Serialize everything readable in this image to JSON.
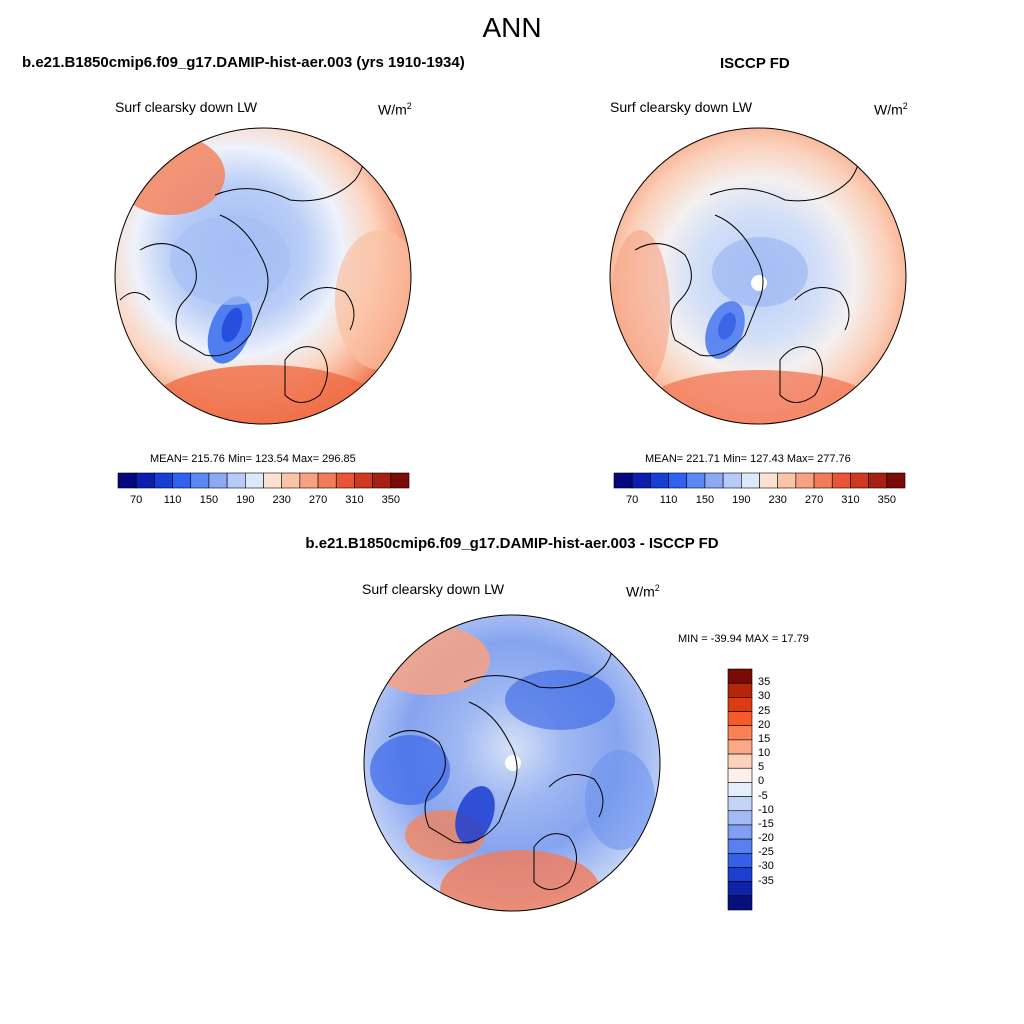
{
  "header": {
    "title": "ANN"
  },
  "variable": {
    "label": "Surf clearsky down LW",
    "units_base": "W/m",
    "units_exp": "2"
  },
  "panels": [
    {
      "id": "model",
      "title": "b.e21.B1850cmip6.f09_g17.DAMIP-hist-aer.003 (yrs 1910-1934)",
      "stats": "MEAN= 215.76  Min= 123.54  Max= 296.85",
      "mean": 215.76,
      "min": 123.54,
      "max": 296.85
    },
    {
      "id": "obs",
      "title": "ISCCP FD",
      "stats": "MEAN= 221.71  Min= 127.43  Max= 277.76",
      "mean": 221.71,
      "min": 127.43,
      "max": 277.76
    },
    {
      "id": "diff",
      "title": "b.e21.B1850cmip6.f09_g17.DAMIP-hist-aer.003 - ISCCP FD",
      "stats": "MIN = -39.94 MAX =  17.79",
      "min": -39.94,
      "max": 17.79
    }
  ],
  "colorbars": {
    "absolute": {
      "colors": [
        "#06067f",
        "#0a1eb0",
        "#1440d8",
        "#2f62f0",
        "#5c88f5",
        "#8aaaf5",
        "#b8cbf8",
        "#dde8fb",
        "#fde2d2",
        "#fbc3a8",
        "#f7a182",
        "#f27b5a",
        "#ea5533",
        "#cf3a1c",
        "#a52210",
        "#7a0a05"
      ],
      "tick_labels": [
        "70",
        "110",
        "150",
        "190",
        "230",
        "270",
        "310",
        "350"
      ]
    },
    "difference": {
      "colors": [
        "#7a0a05",
        "#b5250c",
        "#de3a14",
        "#f55a2b",
        "#f88256",
        "#fba886",
        "#fdd1bb",
        "#fdf0ea",
        "#e6eefc",
        "#c4d4f7",
        "#a2bbf4",
        "#7e9ff2",
        "#5980ef",
        "#365fe7",
        "#1c3ed1",
        "#0e23a8",
        "#05107d"
      ],
      "tick_labels": [
        "35",
        "30",
        "25",
        "20",
        "15",
        "10",
        "5",
        "0",
        "-5",
        "-10",
        "-15",
        "-20",
        "-25",
        "-30",
        "-35"
      ]
    }
  }
}
